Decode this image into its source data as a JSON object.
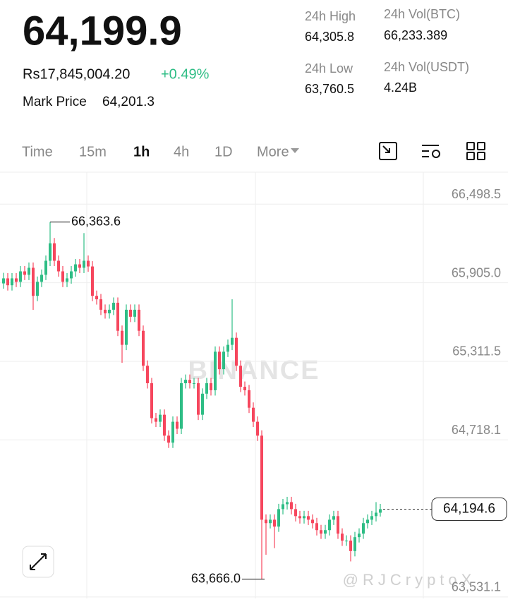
{
  "header": {
    "price": "64,199.9",
    "fiat_price": "Rs17,845,004.20",
    "change": "+0.49%",
    "mark_price_label": "Mark Price",
    "mark_price": "64,201.3",
    "stats": [
      {
        "label": "24h High",
        "value": "64,305.8"
      },
      {
        "label": "24h Vol(BTC)",
        "value": "66,233.389"
      },
      {
        "label": "24h Low",
        "value": "63,760.5"
      },
      {
        "label": "24h Vol(USDT)",
        "value": "4.24B"
      }
    ]
  },
  "toolbar": {
    "tabs": [
      "Time",
      "15m",
      "1h",
      "4h",
      "1D",
      "More"
    ],
    "active": 2
  },
  "watermarks": [
    "BINANCE",
    "@RJCryptoX"
  ],
  "chart_data": {
    "type": "candlestick",
    "up_color": "#2ebd85",
    "down_color": "#f6465d",
    "grid": true,
    "ylim": [
      63520,
      66740
    ],
    "yticks": [
      {
        "value": 66498.5,
        "label": "66,498.5"
      },
      {
        "value": 65905.0,
        "label": "65,905.0"
      },
      {
        "value": 65311.5,
        "label": "65,311.5"
      },
      {
        "value": 64718.1,
        "label": "64,718.1"
      },
      {
        "value": 63531.1,
        "label": "63,531.1"
      }
    ],
    "annotations": [
      {
        "value": 66363.6,
        "label": "66,363.6",
        "index": 11,
        "kind": "high"
      },
      {
        "value": 63666.0,
        "label": "63,666.0",
        "index": 61,
        "kind": "low"
      }
    ],
    "last_price": {
      "value": 64194.6,
      "label": "64,194.6"
    },
    "candles": {
      "open": [
        65900,
        65938,
        65886,
        65938,
        65912,
        65991,
        65965,
        66018,
        65806,
        65912,
        65965,
        66071,
        66203,
        66071,
        65991,
        65912,
        65938,
        65991,
        66044,
        66018,
        66071,
        66028,
        65806,
        65780,
        65701,
        65674,
        65701,
        65754,
        65542,
        65436,
        65701,
        65648,
        65701,
        65542,
        65278,
        65146,
        64882,
        64855,
        64908,
        64750,
        64697,
        64855,
        64802,
        65146,
        65172,
        65146,
        65146,
        64908,
        65067,
        65146,
        65093,
        65384,
        65252,
        65384,
        65436,
        65489,
        65278,
        65119,
        65093,
        64961,
        64855,
        64750,
        64115,
        64089,
        64115,
        64063,
        64195,
        64232,
        64248,
        64195,
        64142,
        64126,
        64142,
        64115,
        64089,
        64036,
        64010,
        64036,
        64115,
        64142,
        64010,
        63957,
        63957,
        63878,
        63983,
        64010,
        64089,
        64115,
        64142,
        64168
      ],
      "high": [
        65980,
        65978,
        65978,
        65978,
        66031,
        66031,
        66058,
        66058,
        65952,
        66005,
        66111,
        66363.6,
        66243,
        66111,
        66031,
        65978,
        66031,
        66084,
        66084,
        66280,
        66111,
        66068,
        65846,
        65820,
        65741,
        65741,
        65794,
        65794,
        65582,
        65741,
        65741,
        65741,
        65741,
        65582,
        65318,
        65186,
        64922,
        64948,
        64948,
        64790,
        64895,
        64895,
        65186,
        65212,
        65212,
        65186,
        65186,
        65107,
        65186,
        65186,
        65424,
        65424,
        65424,
        65476,
        65780,
        65529,
        65318,
        65159,
        65133,
        65001,
        64895,
        64790,
        64155,
        64155,
        64155,
        64235,
        64272,
        64288,
        64288,
        64235,
        64182,
        64182,
        64182,
        64155,
        64129,
        64076,
        64076,
        64155,
        64182,
        64182,
        64050,
        63997,
        63997,
        64023,
        64050,
        64129,
        64155,
        64182,
        64248,
        64234.6
      ],
      "low": [
        65860,
        65846,
        65846,
        65872,
        65872,
        65925,
        65925,
        65700,
        65766,
        65872,
        65925,
        66031,
        66031,
        65951,
        65872,
        65872,
        65898,
        65951,
        65978,
        65978,
        65988,
        65766,
        65740,
        65661,
        65634,
        65634,
        65661,
        65502,
        65300,
        65396,
        65608,
        65608,
        65502,
        65238,
        65106,
        64842,
        64815,
        64815,
        64710,
        64657,
        64657,
        64762,
        64762,
        65106,
        65106,
        65106,
        64868,
        64868,
        65027,
        65053,
        65053,
        65212,
        65212,
        65344,
        65396,
        65238,
        65079,
        65053,
        64921,
        64815,
        64710,
        63666.0,
        63850,
        64049,
        63900,
        64023,
        64155,
        64192,
        64155,
        64102,
        64086,
        64086,
        64075,
        64049,
        63996,
        63970,
        63970,
        63996,
        64075,
        63970,
        63917,
        63917,
        63800,
        63838,
        63943,
        63970,
        64049,
        64075,
        64102,
        64139
      ],
      "close": [
        65938,
        65886,
        65938,
        65912,
        65991,
        65965,
        66018,
        65806,
        65912,
        65965,
        66071,
        66203,
        66071,
        65991,
        65912,
        65938,
        65991,
        66044,
        66018,
        66071,
        66028,
        65806,
        65780,
        65701,
        65674,
        65701,
        65754,
        65542,
        65436,
        65701,
        65648,
        65701,
        65542,
        65278,
        65146,
        64882,
        64855,
        64908,
        64750,
        64697,
        64855,
        64802,
        65146,
        65172,
        65146,
        65146,
        64908,
        65067,
        65146,
        65093,
        65384,
        65252,
        65384,
        65436,
        65489,
        65278,
        65119,
        65093,
        64961,
        64855,
        64750,
        64115,
        64089,
        64115,
        64063,
        64195,
        64232,
        64248,
        64195,
        64142,
        64126,
        64142,
        64115,
        64089,
        64036,
        64010,
        64036,
        64115,
        64142,
        64010,
        63957,
        63957,
        63878,
        63983,
        64010,
        64089,
        64115,
        64142,
        64168,
        64194.6
      ]
    }
  }
}
